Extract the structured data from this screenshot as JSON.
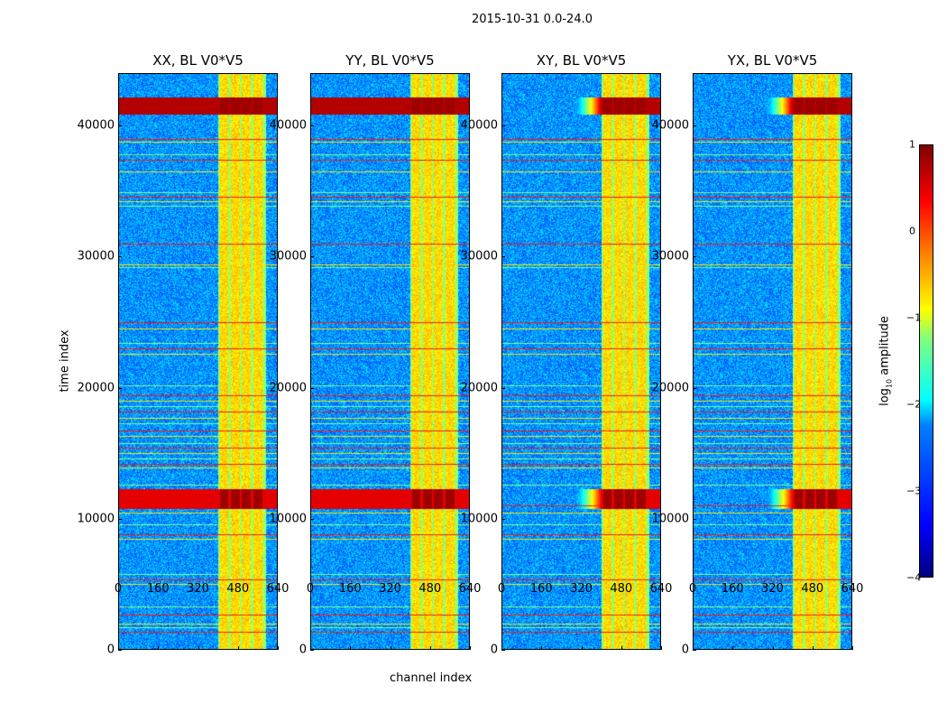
{
  "chart_data": {
    "type": "heatmap",
    "title": "2015-10-31 0.0-24.0",
    "xlabel": "channel index",
    "ylabel": "time index",
    "xlim": [
      0,
      640
    ],
    "ylim": [
      0,
      44000
    ],
    "xticks": [
      "0",
      "160",
      "320",
      "480",
      "640"
    ],
    "xtick_values": [
      0,
      160,
      320,
      480,
      640
    ],
    "yticks": [
      "0",
      "10000",
      "20000",
      "30000",
      "40000"
    ],
    "ytick_values": [
      0,
      10000,
      20000,
      30000,
      40000
    ],
    "panels": [
      {
        "title": "XX, BL V0*V5"
      },
      {
        "title": "YY, BL V0*V5"
      },
      {
        "title": "XY, BL V0*V5"
      },
      {
        "title": "YX, BL V0*V5"
      }
    ],
    "colorbar": {
      "label_main": "log",
      "label_sub": "10",
      "label_rest": " amplitude",
      "range": [
        -4,
        1
      ],
      "ticks": [
        "1",
        "0",
        "−1",
        "−2",
        "−3",
        "−4"
      ],
      "tick_values": [
        1,
        0,
        -1,
        -2,
        -3,
        -4
      ],
      "colormap": "jet"
    },
    "rfi_channel_blocks": [
      [
        405,
        440
      ],
      [
        450,
        485
      ],
      [
        495,
        530
      ],
      [
        540,
        575
      ]
    ],
    "strong_time_bands": [
      [
        40900,
        42200,
        0.95
      ],
      [
        10800,
        12300,
        0.9
      ]
    ],
    "time_lines": [
      39000,
      38800,
      37800,
      37400,
      36500,
      34900,
      34600,
      34200,
      33900,
      31000,
      29400,
      29200,
      25000,
      24500,
      23400,
      23000,
      22600,
      20200,
      19400,
      19000,
      18600,
      18200,
      17700,
      17300,
      16700,
      16300,
      15800,
      15400,
      15000,
      14600,
      14200,
      13900,
      12600,
      11000,
      10500,
      9600,
      8800,
      8500,
      5800,
      5400,
      5000,
      3300,
      2700,
      2000,
      1700,
      1400
    ]
  }
}
